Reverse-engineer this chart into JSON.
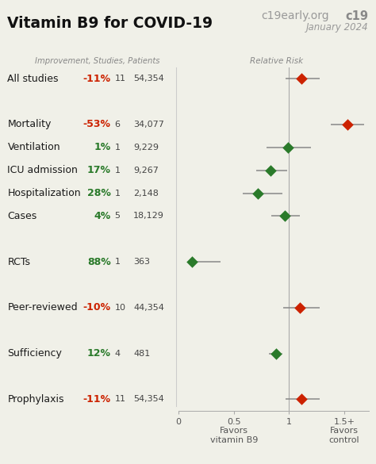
{
  "title": "Vitamin B9 for COVID-19",
  "site_bold": "c19",
  "site_rest": "early.org",
  "date": "January 2024",
  "col_header": "Improvement, Studies, Patients",
  "rr_header": "Relative Risk",
  "background_color": "#f0f0e8",
  "rows": [
    {
      "label": "All studies",
      "pct": "-11%",
      "pct_color": "#cc2200",
      "studies": "11",
      "patients": "54,354",
      "rr": 1.11,
      "ci_lo": 0.97,
      "ci_hi": 1.28,
      "color": "#cc2200",
      "group": "all"
    },
    {
      "label": "",
      "pct": "",
      "pct_color": "",
      "studies": "",
      "patients": "",
      "rr": null,
      "ci_lo": null,
      "ci_hi": null,
      "color": null,
      "group": "sep1"
    },
    {
      "label": "Mortality",
      "pct": "-53%",
      "pct_color": "#cc2200",
      "studies": "6",
      "patients": "34,077",
      "rr": 1.53,
      "ci_lo": 1.38,
      "ci_hi": 1.68,
      "color": "#cc2200",
      "group": "outcomes"
    },
    {
      "label": "Ventilation",
      "pct": "1%",
      "pct_color": "#2a7a2a",
      "studies": "1",
      "patients": "9,229",
      "rr": 0.99,
      "ci_lo": 0.8,
      "ci_hi": 1.2,
      "color": "#2a7a2a",
      "group": "outcomes"
    },
    {
      "label": "ICU admission",
      "pct": "17%",
      "pct_color": "#2a7a2a",
      "studies": "1",
      "patients": "9,267",
      "rr": 0.83,
      "ci_lo": 0.7,
      "ci_hi": 0.98,
      "color": "#2a7a2a",
      "group": "outcomes"
    },
    {
      "label": "Hospitalization",
      "pct": "28%",
      "pct_color": "#2a7a2a",
      "studies": "1",
      "patients": "2,148",
      "rr": 0.72,
      "ci_lo": 0.58,
      "ci_hi": 0.94,
      "color": "#2a7a2a",
      "group": "outcomes"
    },
    {
      "label": "Cases",
      "pct": "4%",
      "pct_color": "#2a7a2a",
      "studies": "5",
      "patients": "18,129",
      "rr": 0.96,
      "ci_lo": 0.84,
      "ci_hi": 1.1,
      "color": "#2a7a2a",
      "group": "outcomes"
    },
    {
      "label": "",
      "pct": "",
      "pct_color": "",
      "studies": "",
      "patients": "",
      "rr": null,
      "ci_lo": null,
      "ci_hi": null,
      "color": null,
      "group": "sep2"
    },
    {
      "label": "RCTs",
      "pct": "88%",
      "pct_color": "#2a7a2a",
      "studies": "1",
      "patients": "363",
      "rr": 0.12,
      "ci_lo": 0.09,
      "ci_hi": 0.38,
      "color": "#2a7a2a",
      "group": "rcts"
    },
    {
      "label": "",
      "pct": "",
      "pct_color": "",
      "studies": "",
      "patients": "",
      "rr": null,
      "ci_lo": null,
      "ci_hi": null,
      "color": null,
      "group": "sep3"
    },
    {
      "label": "Peer-reviewed",
      "pct": "-10%",
      "pct_color": "#cc2200",
      "studies": "10",
      "patients": "44,354",
      "rr": 1.1,
      "ci_lo": 0.95,
      "ci_hi": 1.28,
      "color": "#cc2200",
      "group": "peer"
    },
    {
      "label": "",
      "pct": "",
      "pct_color": "",
      "studies": "",
      "patients": "",
      "rr": null,
      "ci_lo": null,
      "ci_hi": null,
      "color": null,
      "group": "sep4"
    },
    {
      "label": "Sufficiency",
      "pct": "12%",
      "pct_color": "#2a7a2a",
      "studies": "4",
      "patients": "481",
      "rr": 0.88,
      "ci_lo": 0.82,
      "ci_hi": 0.94,
      "color": "#2a7a2a",
      "group": "suff"
    },
    {
      "label": "",
      "pct": "",
      "pct_color": "",
      "studies": "",
      "patients": "",
      "rr": null,
      "ci_lo": null,
      "ci_hi": null,
      "color": null,
      "group": "sep5"
    },
    {
      "label": "Prophylaxis",
      "pct": "-11%",
      "pct_color": "#cc2200",
      "studies": "11",
      "patients": "54,354",
      "rr": 1.11,
      "ci_lo": 0.97,
      "ci_hi": 1.28,
      "color": "#cc2200",
      "group": "proph"
    }
  ],
  "xlim": [
    0,
    1.72
  ],
  "xticks": [
    0,
    0.5,
    1.0,
    1.5
  ],
  "xticklabels": [
    "0",
    "0.5",
    "1",
    "1.5+"
  ],
  "xlabel_left": "Favors\nvitamin B9",
  "xlabel_right": "Favors\ncontrol"
}
